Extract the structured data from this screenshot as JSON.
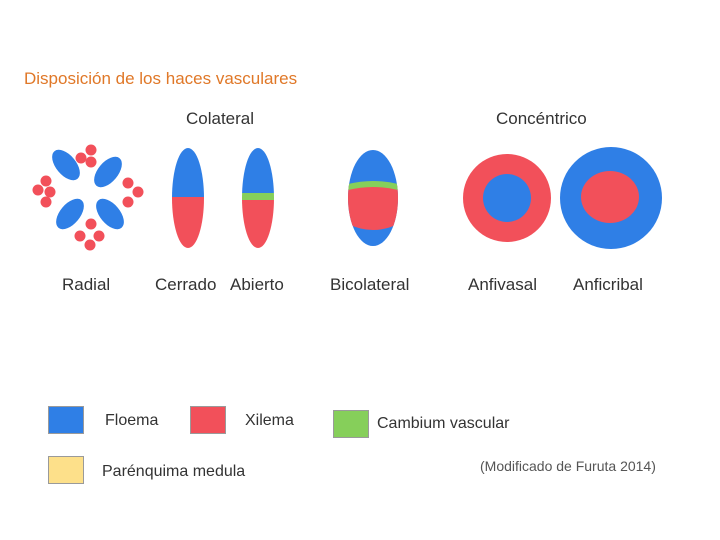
{
  "title": "Disposición de los haces vasculares",
  "groups": {
    "colateral": "Colateral",
    "concentrico": "Concéntrico"
  },
  "labels": {
    "radial": "Radial",
    "cerrado": "Cerrado",
    "abierto": "Abierto",
    "bicolateral": "Bicolateral",
    "anfivasal": "Anfivasal",
    "anficribal": "Anficribal"
  },
  "legend": {
    "floema": "Floema",
    "xilema": "Xilema",
    "cambium": "Cambium vascular",
    "parenquima": "Parénquima medula"
  },
  "source": "(Modificado de Furuta 2014)",
  "colors": {
    "floema": "#2f7fe6",
    "xilema": "#f2505a",
    "cambium": "#86cf5a",
    "parenquima": "#fde08a",
    "title": "#e07828",
    "text": "#333333"
  }
}
